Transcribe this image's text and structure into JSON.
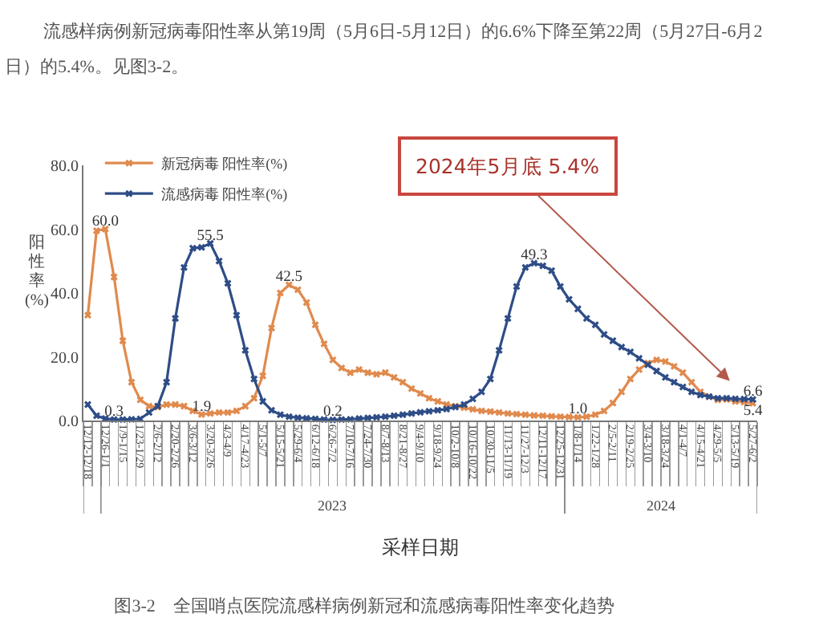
{
  "chart_data": {
    "type": "line",
    "title": "图3-2　全国哨点医院流感样病例新冠和流感病毒阳性率变化趋势",
    "subtitle": "流感样病例新冠病毒阳性率从第19周（5月6日-5月12日）的6.6%下降至第22周（5月27日-6月2日）的5.4%。见图3-2。",
    "xlabel": "采样日期",
    "ylabel": "阳性率(%)",
    "categories": [
      "12/12-12/18",
      null,
      "12/26-1/1",
      null,
      "1/9-1/15",
      null,
      "1/23-1/29",
      null,
      "2/6-2/12",
      null,
      "2/20-2/26",
      null,
      "3/6-3/12",
      null,
      "3/20-3/26",
      null,
      "4/3-4/9",
      null,
      "4/17-4/23",
      null,
      "5/1-5/7",
      null,
      "5/15-5/21",
      null,
      "5/29-6/4",
      null,
      "6/12-6/18",
      null,
      "6/26-7/2",
      null,
      "7/10-7/16",
      null,
      "7/24-7/30",
      null,
      "8/7-8/13",
      null,
      "8/21-8/27",
      null,
      "9/4-9/10",
      null,
      "9/18-9/24",
      null,
      "10/2-10/8",
      null,
      "10/16-10/22",
      null,
      "10/30-11/5",
      null,
      "11/13-11/19",
      null,
      "11/27-12/3",
      null,
      "12/11-12/17",
      null,
      "12/25-12/31",
      null,
      "1/8-1/14",
      null,
      "1/22-1/28",
      null,
      "2/5-2/11",
      null,
      "2/19-2/25",
      null,
      "3/4-3/10",
      null,
      "3/18-3/24",
      null,
      "4/1-4/7",
      null,
      "4/15-4/21",
      null,
      "4/29-5/5",
      null,
      "5/13-5/19",
      null,
      "5/27-6/2"
    ],
    "series": [
      {
        "name": "新冠病毒 阳性率(%)",
        "color": "#e08a4e",
        "values": [
          33,
          59.5,
          60,
          45,
          25,
          12,
          6.5,
          4.5,
          4.2,
          5,
          5,
          4.5,
          3,
          1.9,
          2.2,
          2.5,
          2.5,
          3,
          4.5,
          7,
          14,
          29,
          40,
          42.5,
          41,
          37,
          30,
          24,
          19,
          16.5,
          15,
          16,
          15,
          14.5,
          15,
          13.5,
          12,
          10,
          8.5,
          7,
          6,
          5,
          4.5,
          4,
          3.5,
          3,
          2.8,
          2.5,
          2.2,
          2,
          1.8,
          1.6,
          1.5,
          1.3,
          1.2,
          1.1,
          1,
          1.2,
          1.8,
          3,
          5.5,
          9,
          13,
          16,
          18,
          19,
          18.5,
          17,
          15,
          12,
          9,
          7.5,
          6.5,
          6.6,
          6,
          5.8,
          5.4
        ],
        "value_labels": [
          null,
          null,
          "60.0",
          null,
          null,
          null,
          null,
          null,
          null,
          null,
          null,
          null,
          null,
          "1.9",
          null,
          null,
          null,
          null,
          null,
          null,
          null,
          null,
          null,
          "42.5",
          null,
          null,
          null,
          null,
          null,
          null,
          null,
          null,
          null,
          null,
          null,
          null,
          null,
          null,
          null,
          null,
          null,
          null,
          null,
          null,
          null,
          null,
          null,
          null,
          null,
          null,
          null,
          null,
          null,
          null,
          null,
          null,
          "1.0",
          null,
          null,
          null,
          null,
          null,
          null,
          null,
          null,
          null,
          null,
          null,
          null,
          null,
          null,
          null,
          null,
          null,
          null,
          null,
          "5.4"
        ]
      },
      {
        "name": "流感病毒 阳性率(%)",
        "color": "#2e4d87",
        "values": [
          5,
          1.5,
          0.6,
          0.3,
          0.3,
          0.4,
          0.5,
          2.5,
          4.5,
          12,
          32,
          48,
          54,
          54.3,
          55.5,
          50,
          43,
          33,
          22,
          13,
          6,
          3.2,
          1.8,
          1.2,
          0.9,
          0.7,
          0.5,
          0.3,
          0.2,
          0.3,
          0.4,
          0.6,
          0.8,
          1,
          1.2,
          1.5,
          1.8,
          2.2,
          2.6,
          2.9,
          3.2,
          3.6,
          4.2,
          5,
          6.8,
          9,
          13,
          22,
          32,
          42,
          48,
          49.3,
          48.5,
          47,
          42,
          38,
          35,
          32,
          30,
          27,
          25,
          23,
          21.5,
          19.5,
          17.5,
          15.5,
          13.5,
          12,
          10.5,
          9,
          8,
          7.5,
          7,
          7,
          6.8,
          6.7,
          6.6
        ],
        "value_labels": [
          null,
          null,
          null,
          "0.3",
          null,
          null,
          null,
          null,
          null,
          null,
          null,
          null,
          null,
          null,
          "55.5",
          null,
          null,
          null,
          null,
          null,
          null,
          null,
          null,
          null,
          null,
          null,
          null,
          null,
          "0.2",
          null,
          null,
          null,
          null,
          null,
          null,
          null,
          null,
          null,
          null,
          null,
          null,
          null,
          null,
          null,
          null,
          null,
          null,
          null,
          null,
          null,
          null,
          "49.3",
          null,
          null,
          null,
          null,
          null,
          null,
          null,
          null,
          null,
          null,
          null,
          null,
          null,
          null,
          null,
          null,
          null,
          null,
          null,
          null,
          null,
          null,
          null,
          null,
          "6.6"
        ]
      }
    ],
    "ylim": [
      0,
      80
    ],
    "yticks": [
      {
        "value": 0,
        "label": "0.0"
      },
      {
        "value": 20,
        "label": "20.0"
      },
      {
        "value": 40,
        "label": "40.0"
      },
      {
        "value": 60,
        "label": "60.0"
      },
      {
        "value": 80,
        "label": "80.0"
      }
    ],
    "legend": "top left",
    "marker": "cross",
    "line_style": "solid",
    "annotations": [
      "2023",
      "2024",
      {
        "text": "2024年5月底 5.4%",
        "x": "5/27-6/2",
        "y": 5.4
      }
    ]
  }
}
